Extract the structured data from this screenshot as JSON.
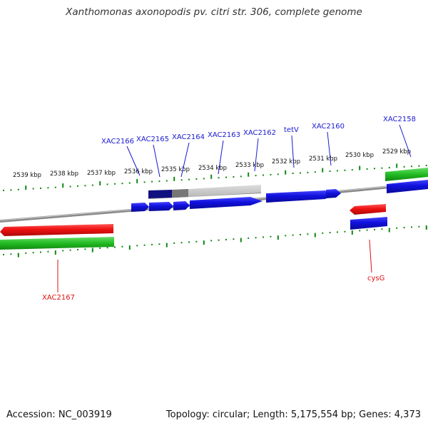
{
  "title": "Xanthomonas axonopodis pv. citri str. 306, complete genome",
  "footer": {
    "accession": "Accession: NC_003919",
    "topology": "Topology: circular; Length: 5,175,554 bp; Genes: 4,373"
  },
  "colors": {
    "forward_gene": "#1010dd",
    "reverse_gene": "#ee1111",
    "forward_label": "#1a1ad0",
    "reverse_label": "#dd1111",
    "rna_track": "#22bb22",
    "backbone": "#8a8a8a",
    "ticks": "#118811",
    "gc_track_dark": "#101080",
    "gc_track_light": "#cccccc"
  },
  "scale_labels": [
    "2539 kbp",
    "2538 kbp",
    "2537 kbp",
    "2536 kbp",
    "2535 kbp",
    "2534 kbp",
    "2533 kbp",
    "2532 kbp",
    "2531 kbp",
    "2530 kbp",
    "2529 kbp"
  ],
  "forward_genes": [
    "XAC2166",
    "XAC2165",
    "XAC2164",
    "XAC2163",
    "XAC2162",
    "tetV",
    "XAC2160",
    "XAC2158"
  ],
  "reverse_genes": [
    "XAC2167",
    "cysG"
  ]
}
